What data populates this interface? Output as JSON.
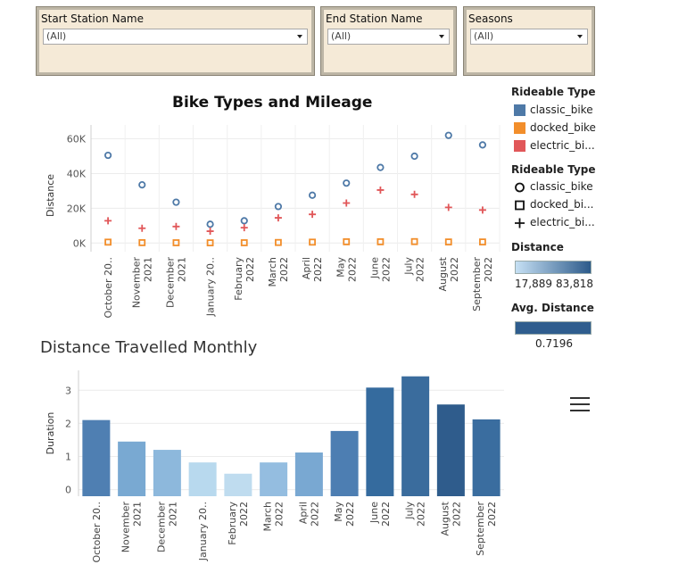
{
  "filters": [
    {
      "label": "Start Station Name",
      "value": "(All)"
    },
    {
      "label": "End Station Name",
      "value": "(All)"
    },
    {
      "label": "Seasons",
      "value": "(All)"
    }
  ],
  "legends": {
    "color_title": "Rideable Type",
    "color_items": [
      {
        "label": "classic_bike",
        "color": "#4e79a7"
      },
      {
        "label": "docked_bike",
        "color": "#f28e2b"
      },
      {
        "label": "electric_bi...",
        "color": "#e15759"
      }
    ],
    "shape_title": "Rideable Type",
    "shape_items": [
      {
        "label": "classic_bike",
        "shape": "circle"
      },
      {
        "label": "docked_bi...",
        "shape": "square"
      },
      {
        "label": "electric_bi...",
        "shape": "plus"
      }
    ],
    "distance_title": "Distance",
    "distance_min": "17,889",
    "distance_max": "83,818",
    "avg_title": "Avg. Distance",
    "avg_value": "0.7196"
  },
  "chart_data": [
    {
      "type": "scatter",
      "title": "Bike Types and Mileage",
      "ylabel": "Distance",
      "ylim": [
        -5000,
        68000
      ],
      "yticks": [
        "0K",
        "20K",
        "40K",
        "60K"
      ],
      "categories": [
        "October 20..",
        "November 2021",
        "December 2021",
        "January 20..",
        "February 2022",
        "March 2022",
        "April 2022",
        "May 2022",
        "June 2022",
        "July 2022",
        "August 2022",
        "September 2022"
      ],
      "series": [
        {
          "name": "classic_bike",
          "shape": "circle",
          "color": "#4e79a7",
          "values": [
            50500,
            33500,
            23500,
            10800,
            12800,
            21000,
            27500,
            34500,
            43500,
            50000,
            62000,
            56500
          ]
        },
        {
          "name": "docked_bike",
          "shape": "square",
          "color": "#f28e2b",
          "values": [
            500,
            200,
            150,
            100,
            150,
            300,
            500,
            700,
            700,
            800,
            600,
            600
          ]
        },
        {
          "name": "electric_bike",
          "shape": "plus",
          "color": "#e15759",
          "values": [
            12800,
            8500,
            9500,
            6800,
            8800,
            14500,
            16500,
            23000,
            30500,
            28000,
            20500,
            19000
          ]
        }
      ],
      "grid": true
    },
    {
      "type": "bar",
      "title": "Distance Travelled Monthly",
      "ylabel": "Duration",
      "ylim": [
        -0.2,
        3.6
      ],
      "yticks": [
        "0",
        "1",
        "2",
        "3"
      ],
      "categories": [
        "October 20..",
        "November 2021",
        "December 2021",
        "January 20..",
        "February 2022",
        "March 2022",
        "April 2022",
        "May 2022",
        "June 2022",
        "July 2022",
        "August 2022",
        "September 2022"
      ],
      "values": [
        2.1,
        1.45,
        1.2,
        0.82,
        0.48,
        0.82,
        1.12,
        1.77,
        3.08,
        3.42,
        2.57,
        2.12
      ],
      "colors": [
        "#4f7fb2",
        "#79a9d2",
        "#8db8dc",
        "#b8d9ee",
        "#bfdcef",
        "#94bde0",
        "#79a8d2",
        "#4d7eb2",
        "#356b9e",
        "#3a6c9d",
        "#2f5c8c",
        "#3a6d9f"
      ],
      "grid": true
    }
  ]
}
